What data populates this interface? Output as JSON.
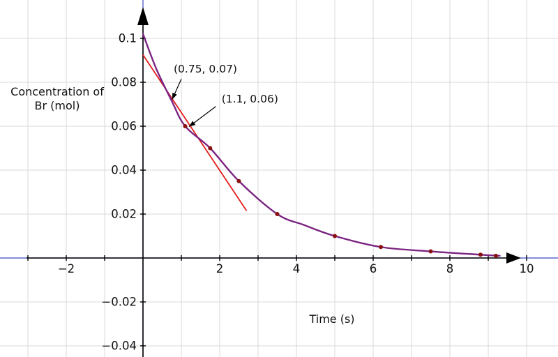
{
  "chart_data": {
    "type": "line",
    "title": "",
    "xlabel": "Time (s)",
    "ylabel": "Concentration of Br (mol)",
    "grid": true,
    "x_axis": {
      "min": -3,
      "max": 10.8,
      "grid_step": 1,
      "tick_values": [
        -3,
        -2,
        -1,
        1,
        2,
        3,
        4,
        5,
        6,
        7,
        8,
        9,
        10
      ],
      "label_values": [
        -2,
        2,
        4,
        6,
        8,
        10
      ],
      "label_texts": [
        "−2",
        "2",
        "4",
        "6",
        "8",
        "10"
      ]
    },
    "y_axis": {
      "min": -0.045,
      "max": 0.105,
      "grid_step": 0.02,
      "tick_values": [
        -0.04,
        -0.02,
        0.02,
        0.04,
        0.06,
        0.08,
        0.1
      ],
      "label_values": [
        -0.04,
        -0.02,
        0.02,
        0.04,
        0.06,
        0.08,
        0.1
      ],
      "label_texts": [
        "−0.04",
        "−0.02",
        "0.02",
        "0.04",
        "0.06",
        "0.08",
        "0.1"
      ]
    },
    "series": [
      {
        "name": "concentration-curve",
        "color": "#7b2482",
        "width": 2.4,
        "smooth": true,
        "points": [
          [
            0,
            0.102
          ],
          [
            0.35,
            0.086
          ],
          [
            0.75,
            0.0715
          ],
          [
            1.1,
            0.06
          ],
          [
            1.75,
            0.05
          ],
          [
            2.5,
            0.035
          ],
          [
            3.5,
            0.02
          ],
          [
            4.2,
            0.015
          ],
          [
            5,
            0.01
          ],
          [
            6.2,
            0.005
          ],
          [
            7.5,
            0.003
          ],
          [
            8.8,
            0.0015
          ],
          [
            9.3,
            0.001
          ]
        ]
      },
      {
        "name": "tangent-line",
        "color": "#e01b1b",
        "width": 1.8,
        "smooth": false,
        "points": [
          [
            0,
            0.0925
          ],
          [
            2.7,
            0.0215
          ]
        ]
      }
    ],
    "data_points": {
      "color": "#8b1111",
      "radius": 3,
      "points": [
        [
          1.1,
          0.06
        ],
        [
          1.75,
          0.05
        ],
        [
          2.5,
          0.035
        ],
        [
          3.5,
          0.02
        ],
        [
          5,
          0.01
        ],
        [
          6.2,
          0.005
        ],
        [
          7.5,
          0.003
        ],
        [
          8.8,
          0.0015
        ],
        [
          9.2,
          0.001
        ]
      ]
    },
    "annotations": [
      {
        "text": "(0.75, 0.07)",
        "text_pos": [
          0.8,
          0.0845
        ],
        "arrow_from": [
          1.0,
          0.0815
        ],
        "arrow_to": [
          0.76,
          0.0722
        ]
      },
      {
        "text": "(1.1, 0.06)",
        "text_pos": [
          2.05,
          0.0708
        ],
        "arrow_from": [
          1.9,
          0.069
        ],
        "arrow_to": [
          1.2,
          0.0598
        ]
      }
    ],
    "colors": {
      "grid": "#d9d9d9",
      "axis_blue": "#3c49c6",
      "axis_black": "#000000",
      "text": "#111111"
    }
  }
}
